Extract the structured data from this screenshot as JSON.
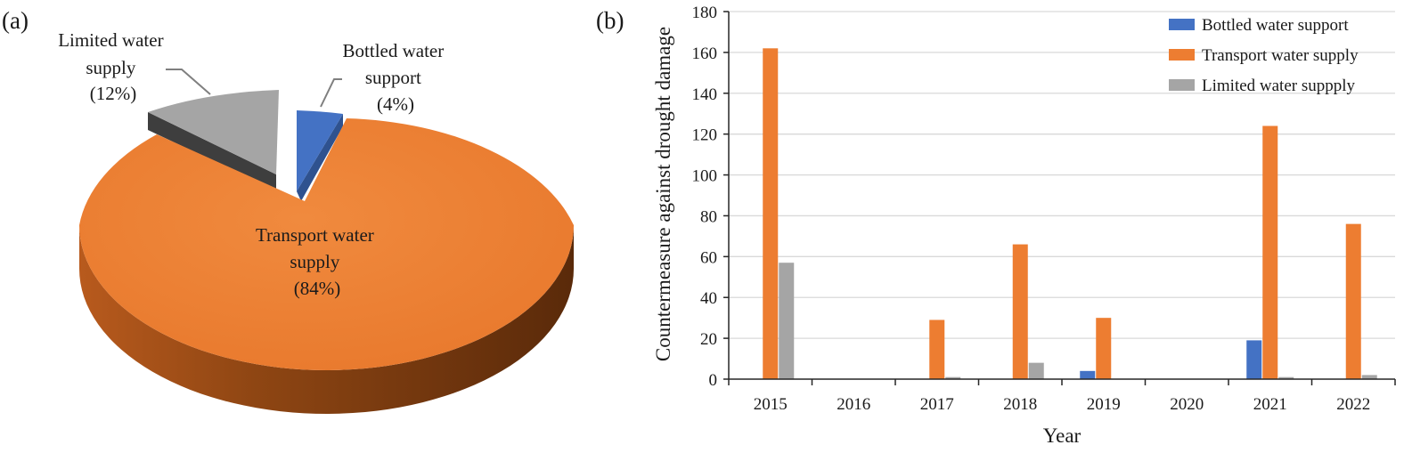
{
  "panels": {
    "a": "(a)",
    "b": "(b)"
  },
  "colors": {
    "bottled": "#4472C4",
    "transport": "#ED7D31",
    "limited": "#A5A5A5",
    "gridline": "#d9d9d9",
    "axis": "#262626"
  },
  "chart_data": [
    {
      "type": "pie",
      "style": "3d exploded",
      "slices": [
        {
          "label_lines": [
            "Bottled water",
            "support",
            "(4%)"
          ],
          "value": 4,
          "color": "#4472C4"
        },
        {
          "label_lines": [
            "Transport water",
            "supply",
            "(84%)"
          ],
          "value": 84,
          "color": "#ED7D31"
        },
        {
          "label_lines": [
            "Limited water",
            "supply",
            "(12%)"
          ],
          "value": 12,
          "color": "#A5A5A5"
        }
      ]
    },
    {
      "type": "bar",
      "categories": [
        "2015",
        "2016",
        "2017",
        "2018",
        "2019",
        "2020",
        "2021",
        "2022"
      ],
      "series": [
        {
          "name": "Bottled water support",
          "color": "#4472C4",
          "values": [
            0,
            0,
            0,
            0,
            4,
            0,
            19,
            0
          ]
        },
        {
          "name": "Transport water supply",
          "color": "#ED7D31",
          "values": [
            162,
            0,
            29,
            66,
            30,
            0,
            124,
            76
          ]
        },
        {
          "name": "Limited water suppply",
          "color": "#A5A5A5",
          "values": [
            57,
            0,
            1,
            8,
            0,
            0,
            1,
            2
          ]
        }
      ],
      "xlabel": "Year",
      "ylabel": "Countermeasure against drought damage",
      "ylim": [
        0,
        180
      ],
      "yticks": [
        "0",
        "20",
        "40",
        "60",
        "80",
        "100",
        "120",
        "140",
        "160",
        "180"
      ],
      "grid": "horizontal",
      "legend": "top-right"
    }
  ]
}
